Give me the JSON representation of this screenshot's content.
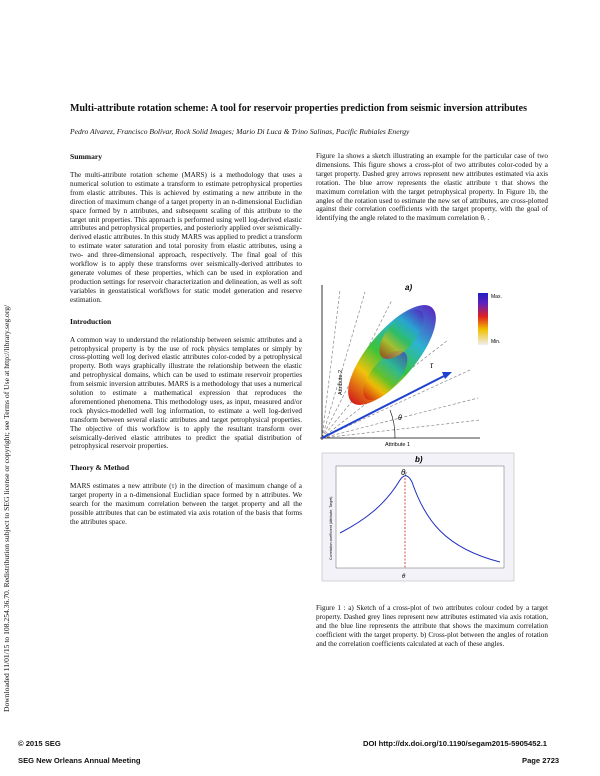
{
  "side_note": "Downloaded 11/01/15 to 108.254.36.70. Redistribution subject to SEG license or copyright; see Terms of Use at http://library.seg.org/",
  "header": {
    "title": "Multi-attribute rotation scheme: A tool for reservoir properties prediction from seismic inversion attributes",
    "authors": "Pedro Alvarez, Francisco Bolívar, Rock Solid Images; Mario Di Luca & Trino Salinas, Pacific Rubiales Energy"
  },
  "sections": [
    {
      "heading": "Summary",
      "paragraphs": [
        "The multi-attribute rotation scheme (MARS) is a methodology that uses a numerical solution to estimate a transform to estimate petrophysical properties from elastic attributes. This is achieved by estimating a new attribute in the direction of maximum change of a target property in an n-dimensional Euclidian space formed by n attributes, and subsequent scaling of this attribute to the target unit properties. This approach is performed using well log-derived elastic attributes and petrophysical properties, and posteriorly applied over seismically-derived elastic attributes. In this study MARS was applied to predict a transform to estimate water saturation and total porosity from elastic attributes, using a two- and three-dimensional approach, respectively. The final goal of this workflow is to apply these transforms over seismically-derived attributes to generate volumes of these properties, which can be used in exploration and production settings for reservoir characterization and delineation, as well as soft variables in geostatistical workflows for static model generation and reserve estimation."
      ]
    },
    {
      "heading": "Introduction",
      "paragraphs": [
        "A common way to understand the relationship between seismic attributes and a petrophysical property is by the use of rock physics templates or simply by cross-plotting well log derived elastic attributes color-coded by a petrophysical property. Both ways graphically illustrate the relationship between the elastic and petrophysical domains, which can be used to estimate reservoir properties from seismic inversion attributes. MARS is a methodology that uses a numerical solution to estimate a mathematical expression that reproduces the aforementioned phenomena. This methodology uses, as input, measured and/or rock physics-modelled well log information, to estimate a well log-derived transform between several elastic attributes and target petrophysical properties. The objective of this workflow is to apply the resultant transform over seismically-derived elastic attributes to predict the spatial distribution of petrophysical reservoir properties."
      ]
    },
    {
      "heading": "Theory & Method",
      "paragraphs": [
        "MARS estimates a new attribute (τ) in the direction of maximum change of a target property in a n-dimensional Euclidian space formed by n attributes. We search for the maximum correlation between the target property and all the possible attributes that can be estimated via axis rotation of the basis that forms the attributes space."
      ]
    }
  ],
  "right_paragraph": "Figure 1a shows a sketch illustrating an example for the particular case of two dimensions. This figure shows a cross-plot of two attributes color-coded by a target property. Dashed grey arrows represent new attributes estimated via axis rotation. The blue arrow represents the elastic attribute τ that shows the maximum correlation with the target petrophysical property. In Figure 1b, the angles of the rotation used to estimate the new set of attributes, are cross-plotted against their correlation coefficients with the target property, with the goal of identifying the angle related to the maximum correlation θᵣ .",
  "figure": {
    "panel_a": {
      "label": "a)",
      "x_axis": "Attribute 1",
      "y_axis": "Attribute 2",
      "arrow_label": "τ",
      "angle_label": "θ",
      "colorbar_max": "Max.",
      "colorbar_min": "Min."
    },
    "panel_b": {
      "label": "b)",
      "peak_label": "θᵣ",
      "x_axis": "θ",
      "y_axis": "Correlation coefficient (Attribute, Target)"
    },
    "caption": "Figure 1 : a) Sketch of a cross-plot of two attributes colour coded by a target property. Dashed grey lines represent new attributes estimated via axis rotation, and the blue line represents the attribute that shows the maximum correlation coefficient with the target property. b) Cross-plot between the angles of rotation and the correlation coefficients calculated at each of these angles."
  },
  "footer": {
    "copyright": "© 2015 SEG",
    "meeting": "SEG New Orleans Annual Meeting",
    "doi": "DOI http://dx.doi.org/10.1190/segam2015-5905452.1",
    "page": "Page 2723"
  }
}
